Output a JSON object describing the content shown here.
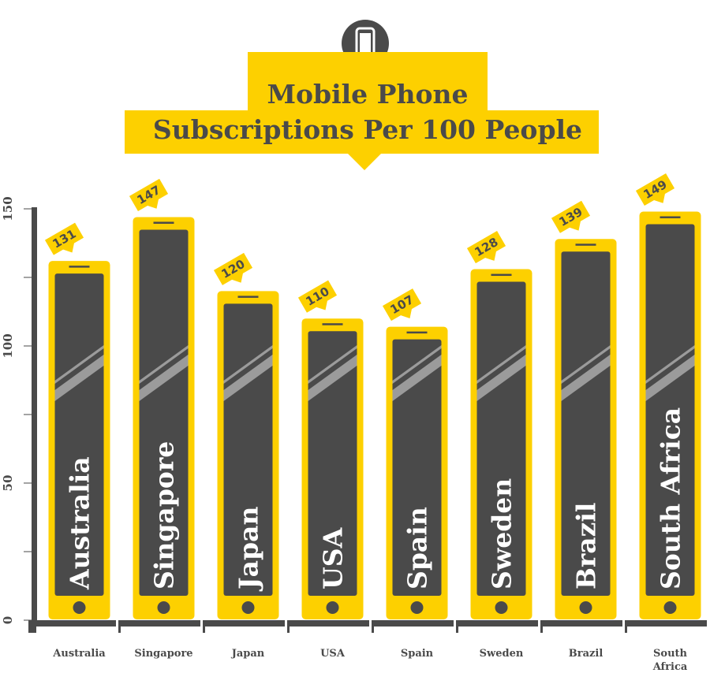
{
  "title_lines": [
    "Mobile Phone",
    "Subscriptions Per 100 People"
  ],
  "colors": {
    "accent": "#fdd000",
    "dark": "#4a4a4a",
    "stripe": "#9b9b9b",
    "axis": "#4a4a4a"
  },
  "icon": "mobile-phone-icon",
  "chart_data": {
    "type": "bar",
    "title": "Mobile Phone Subscriptions Per 100 People",
    "categories": [
      "Australia",
      "Singapore",
      "Japan",
      "USA",
      "Spain",
      "Sweden",
      "Brazil",
      "South Africa"
    ],
    "values": [
      131,
      147,
      120,
      110,
      107,
      128,
      139,
      149
    ],
    "ylim": [
      0,
      150
    ],
    "yticks": [
      0,
      50,
      100,
      150
    ],
    "xlabel": "",
    "ylabel": "",
    "legend": "none",
    "grid": false
  }
}
